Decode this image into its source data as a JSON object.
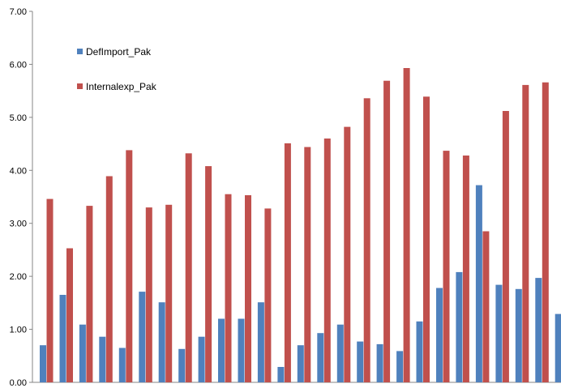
{
  "chart_data": {
    "type": "bar",
    "title": "",
    "xlabel": "",
    "ylabel": "",
    "ylim": [
      0,
      7
    ],
    "yticks": [
      "0.00",
      "1.00",
      "2.00",
      "3.00",
      "4.00",
      "5.00",
      "6.00",
      "7.00"
    ],
    "grid": false,
    "legend_position": "top-left",
    "series": [
      {
        "name": "DefImport_Pak",
        "color": "#4f81bd",
        "values": [
          0.7,
          1.65,
          1.09,
          0.86,
          0.65,
          1.71,
          1.51,
          0.63,
          0.86,
          1.2,
          1.2,
          1.51,
          0.29,
          0.7,
          0.93,
          1.09,
          0.77,
          0.72,
          0.59,
          1.15,
          1.78,
          2.08,
          3.72,
          1.84,
          1.76,
          1.97,
          1.29
        ]
      },
      {
        "name": "Internalexp_Pak",
        "color": "#c0504d",
        "values": [
          3.46,
          2.53,
          3.33,
          3.89,
          4.38,
          3.3,
          3.35,
          4.32,
          4.08,
          3.55,
          3.53,
          3.28,
          4.51,
          4.44,
          4.6,
          4.82,
          5.36,
          5.69,
          5.93,
          5.39,
          4.37,
          4.28,
          2.85,
          5.12,
          5.61,
          5.66,
          null
        ]
      }
    ]
  }
}
